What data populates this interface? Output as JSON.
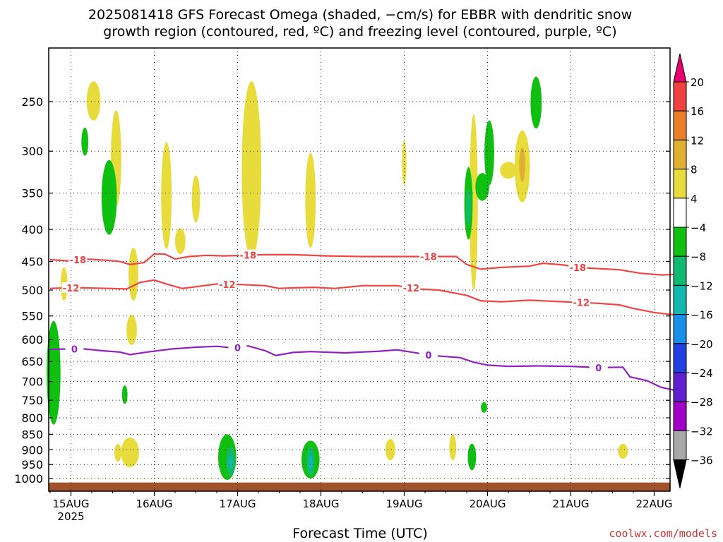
{
  "chart_data": {
    "type": "heatmap",
    "title_line1": "2025081418 GFS Forecast Omega (shaded, −cm/s) for EBBR with dendritic snow",
    "title_line2": "growth region (contoured, red, ºC) and freezing level (contoured, purple, ºC)",
    "xlabel": "Forecast Time (UTC)",
    "credit": "coolwx.com/models",
    "x_ticks": [
      {
        "label": "15AUG",
        "sub": "2025",
        "hour": 6
      },
      {
        "label": "16AUG",
        "hour": 30
      },
      {
        "label": "17AUG",
        "hour": 54
      },
      {
        "label": "18AUG",
        "hour": 78
      },
      {
        "label": "19AUG",
        "hour": 102
      },
      {
        "label": "20AUG",
        "hour": 126
      },
      {
        "label": "21AUG",
        "hour": 150
      },
      {
        "label": "22AUG",
        "hour": 174
      }
    ],
    "x_range_hours": [
      0,
      180
    ],
    "y_ticks": [
      250,
      300,
      350,
      400,
      450,
      500,
      550,
      600,
      650,
      700,
      750,
      800,
      850,
      900,
      950,
      1000
    ],
    "y_range_hpa": [
      200,
      1040
    ],
    "y_scale": "log-pressure",
    "colorbar": {
      "levels": [
        "20",
        "16",
        "12",
        "8",
        "4",
        "−4",
        "−8",
        "−12",
        "−16",
        "−20",
        "−24",
        "−28",
        "−32",
        "−36"
      ],
      "colors": [
        "#e8006e",
        "#f04040",
        "#e88028",
        "#e0b030",
        "#e8dc3c",
        "#ffffff",
        "#10c010",
        "#10b870",
        "#10b8b0",
        "#1890e8",
        "#2040e0",
        "#6020d0",
        "#a000c8",
        "#a8a8a8",
        "#000000"
      ]
    },
    "contours": [
      {
        "label": "-18",
        "color": "#f04444",
        "points": [
          [
            0,
            447
          ],
          [
            5,
            449
          ],
          [
            10,
            446
          ],
          [
            16,
            448
          ],
          [
            20,
            450
          ],
          [
            23,
            455
          ],
          [
            27,
            452
          ],
          [
            30,
            438
          ],
          [
            33,
            438
          ],
          [
            36,
            446
          ],
          [
            40,
            442
          ],
          [
            45,
            440
          ],
          [
            50,
            441
          ],
          [
            56,
            440
          ],
          [
            62,
            439
          ],
          [
            70,
            439
          ],
          [
            80,
            441
          ],
          [
            90,
            442
          ],
          [
            100,
            442
          ],
          [
            115,
            442
          ],
          [
            117,
            442
          ],
          [
            120,
            455
          ],
          [
            124,
            463
          ],
          [
            130,
            460
          ],
          [
            138,
            458
          ],
          [
            142,
            453
          ],
          [
            148,
            456
          ],
          [
            152,
            460
          ],
          [
            158,
            462
          ],
          [
            164,
            464
          ],
          [
            170,
            470
          ],
          [
            176,
            473
          ],
          [
            180,
            472
          ]
        ],
        "label_hours": [
          8,
          57,
          109,
          152
        ]
      },
      {
        "label": "-12",
        "color": "#f04444",
        "points": [
          [
            0,
            497
          ],
          [
            5,
            496
          ],
          [
            10,
            496
          ],
          [
            17,
            497
          ],
          [
            22,
            498
          ],
          [
            26,
            486
          ],
          [
            30,
            482
          ],
          [
            34,
            490
          ],
          [
            38,
            497
          ],
          [
            42,
            494
          ],
          [
            48,
            489
          ],
          [
            55,
            490
          ],
          [
            62,
            492
          ],
          [
            66,
            497
          ],
          [
            70,
            496
          ],
          [
            76,
            495
          ],
          [
            82,
            497
          ],
          [
            90,
            492
          ],
          [
            96,
            492
          ],
          [
            100,
            492
          ],
          [
            106,
            498
          ],
          [
            112,
            500
          ],
          [
            116,
            505
          ],
          [
            120,
            510
          ],
          [
            124,
            520
          ],
          [
            130,
            522
          ],
          [
            138,
            519
          ],
          [
            148,
            522
          ],
          [
            158,
            525
          ],
          [
            164,
            528
          ],
          [
            168,
            535
          ],
          [
            174,
            543
          ],
          [
            180,
            548
          ]
        ],
        "label_hours": [
          6,
          51,
          104,
          153
        ]
      },
      {
        "label": "0",
        "color": "#9020c0",
        "points": [
          [
            0,
            622
          ],
          [
            5,
            621
          ],
          [
            10,
            621
          ],
          [
            15,
            625
          ],
          [
            20,
            628
          ],
          [
            23,
            634
          ],
          [
            28,
            628
          ],
          [
            35,
            621
          ],
          [
            42,
            617
          ],
          [
            48,
            615
          ],
          [
            53,
            619
          ],
          [
            57,
            614
          ],
          [
            62,
            625
          ],
          [
            65,
            636
          ],
          [
            70,
            629
          ],
          [
            75,
            627
          ],
          [
            85,
            630
          ],
          [
            95,
            626
          ],
          [
            100,
            623
          ],
          [
            110,
            636
          ],
          [
            118,
            641
          ],
          [
            122,
            652
          ],
          [
            126,
            659
          ],
          [
            132,
            662
          ],
          [
            140,
            661
          ],
          [
            150,
            662
          ],
          [
            158,
            665
          ],
          [
            165,
            664
          ],
          [
            167,
            688
          ],
          [
            172,
            698
          ],
          [
            176,
            715
          ],
          [
            180,
            723
          ]
        ],
        "label_hours": [
          7,
          54,
          109,
          158
        ]
      }
    ],
    "terrain": {
      "color": "#a0522d",
      "top_hpa": 1015
    },
    "shaded_regions": [
      {
        "level": "4",
        "hour": 12.5,
        "hpa_top": 232,
        "hpa_bot": 268,
        "w": 2
      },
      {
        "level": "4",
        "hour": 19,
        "hpa_top": 258,
        "hpa_bot": 368,
        "w": 1.5
      },
      {
        "level": "4",
        "hour": 24,
        "hpa_top": 428,
        "hpa_bot": 520,
        "w": 1.4
      },
      {
        "level": "4",
        "hour": 23.5,
        "hpa_top": 548,
        "hpa_bot": 612,
        "w": 1.5
      },
      {
        "level": "4",
        "hour": 33.5,
        "hpa_top": 290,
        "hpa_bot": 430,
        "w": 1.5
      },
      {
        "level": "4",
        "hour": 37.5,
        "hpa_top": 398,
        "hpa_bot": 438,
        "w": 1.5
      },
      {
        "level": "4",
        "hour": 42,
        "hpa_top": 328,
        "hpa_bot": 390,
        "w": 1.2
      },
      {
        "level": "4",
        "hour": 58,
        "hpa_top": 232,
        "hpa_bot": 445,
        "w": 2.8
      },
      {
        "level": "4",
        "hour": 75,
        "hpa_top": 302,
        "hpa_bot": 428,
        "w": 1.5
      },
      {
        "level": "4",
        "hour": 102,
        "hpa_top": 288,
        "hpa_bot": 340,
        "w": 0.6
      },
      {
        "level": "4",
        "hour": 122,
        "hpa_top": 262,
        "hpa_bot": 500,
        "w": 1.2
      },
      {
        "level": "4",
        "hour": 136,
        "hpa_top": 278,
        "hpa_bot": 362,
        "w": 2.2
      },
      {
        "level": "4",
        "hour": 132,
        "hpa_top": 312,
        "hpa_bot": 332,
        "w": 2.4
      },
      {
        "level": "4",
        "hour": 4,
        "hpa_top": 460,
        "hpa_bot": 520,
        "w": 1
      },
      {
        "level": "4",
        "hour": 23,
        "hpa_top": 860,
        "hpa_bot": 960,
        "w": 2.6
      },
      {
        "level": "4",
        "hour": 19.5,
        "hpa_top": 880,
        "hpa_bot": 940,
        "w": 1
      },
      {
        "level": "4",
        "hour": 98,
        "hpa_top": 865,
        "hpa_bot": 935,
        "w": 1.4
      },
      {
        "level": "4",
        "hour": 116,
        "hpa_top": 850,
        "hpa_bot": 935,
        "w": 1
      },
      {
        "level": "4",
        "hour": 165,
        "hpa_top": 880,
        "hpa_bot": 930,
        "w": 1.4
      },
      {
        "level": "8",
        "hour": 136,
        "hpa_top": 296,
        "hpa_bot": 336,
        "w": 0.9
      },
      {
        "level": "-4",
        "hour": 10,
        "hpa_top": 275,
        "hpa_bot": 305,
        "w": 1
      },
      {
        "level": "-4",
        "hour": 17,
        "hpa_top": 310,
        "hpa_bot": 408,
        "w": 2.2
      },
      {
        "level": "-4",
        "hour": 1,
        "hpa_top": 560,
        "hpa_bot": 820,
        "w": 2
      },
      {
        "level": "-4",
        "hour": 21.5,
        "hpa_top": 710,
        "hpa_bot": 760,
        "w": 0.8
      },
      {
        "level": "-4",
        "hour": 51,
        "hpa_top": 850,
        "hpa_bot": 1005,
        "w": 2.6
      },
      {
        "level": "-4",
        "hour": 75,
        "hpa_top": 870,
        "hpa_bot": 1000,
        "w": 2.6
      },
      {
        "level": "-4",
        "hour": 120.5,
        "hpa_top": 318,
        "hpa_bot": 415,
        "w": 1.2
      },
      {
        "level": "-4",
        "hour": 121.5,
        "hpa_top": 880,
        "hpa_bot": 970,
        "w": 1.2
      },
      {
        "level": "-4",
        "hour": 126.5,
        "hpa_top": 268,
        "hpa_bot": 340,
        "w": 1.4
      },
      {
        "level": "-4",
        "hour": 124.5,
        "hpa_top": 325,
        "hpa_bot": 360,
        "w": 2
      },
      {
        "level": "-4",
        "hour": 140,
        "hpa_top": 228,
        "hpa_bot": 276,
        "w": 1.6
      },
      {
        "level": "-4",
        "hour": 125,
        "hpa_top": 755,
        "hpa_bot": 785,
        "w": 0.9
      },
      {
        "level": "-8",
        "hour": 52,
        "hpa_top": 890,
        "hpa_bot": 990,
        "w": 1.2
      },
      {
        "level": "-8",
        "hour": 75,
        "hpa_top": 890,
        "hpa_bot": 990,
        "w": 1.2
      },
      {
        "level": "-8",
        "hour": 120.5,
        "hpa_top": 345,
        "hpa_bot": 395,
        "w": 0.7
      },
      {
        "level": "-12",
        "hour": 52,
        "hpa_top": 920,
        "hpa_bot": 965,
        "w": 0.6
      },
      {
        "level": "-12",
        "hour": 75,
        "hpa_top": 920,
        "hpa_bot": 965,
        "w": 0.6
      }
    ]
  }
}
